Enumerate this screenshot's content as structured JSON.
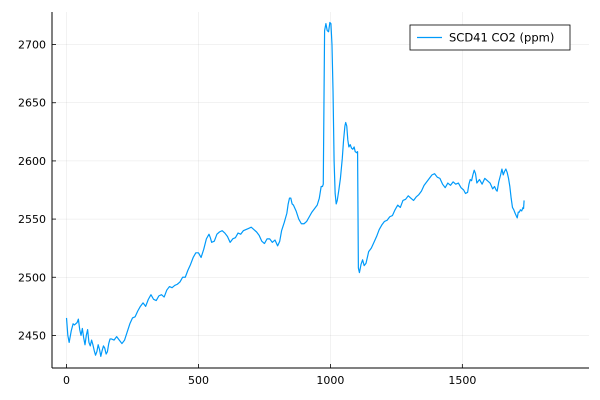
{
  "chart_data": {
    "type": "line",
    "xlim": [
      -55,
      1980
    ],
    "ylim": [
      2422,
      2728
    ],
    "xticks": [
      0,
      500,
      1000,
      1500
    ],
    "yticks": [
      2450,
      2500,
      2550,
      2600,
      2650,
      2700
    ],
    "grid": true,
    "legend_position": "top-right",
    "series": [
      {
        "name": "SCD41 CO2 (ppm)",
        "color": "#009AFA",
        "points": [
          [
            0,
            2465
          ],
          [
            5,
            2450
          ],
          [
            10,
            2444
          ],
          [
            18,
            2454
          ],
          [
            25,
            2460
          ],
          [
            30,
            2459
          ],
          [
            40,
            2461
          ],
          [
            45,
            2464
          ],
          [
            50,
            2455
          ],
          [
            55,
            2450
          ],
          [
            60,
            2456
          ],
          [
            65,
            2448
          ],
          [
            70,
            2442
          ],
          [
            75,
            2450
          ],
          [
            80,
            2455
          ],
          [
            85,
            2444
          ],
          [
            90,
            2441
          ],
          [
            95,
            2446
          ],
          [
            100,
            2442
          ],
          [
            105,
            2437
          ],
          [
            110,
            2433
          ],
          [
            115,
            2436
          ],
          [
            120,
            2442
          ],
          [
            125,
            2438
          ],
          [
            130,
            2432
          ],
          [
            135,
            2437
          ],
          [
            140,
            2441
          ],
          [
            145,
            2439
          ],
          [
            150,
            2434
          ],
          [
            155,
            2436
          ],
          [
            160,
            2443
          ],
          [
            165,
            2447
          ],
          [
            170,
            2447
          ],
          [
            180,
            2446
          ],
          [
            190,
            2449
          ],
          [
            200,
            2446
          ],
          [
            210,
            2443
          ],
          [
            220,
            2446
          ],
          [
            230,
            2453
          ],
          [
            240,
            2460
          ],
          [
            250,
            2465
          ],
          [
            260,
            2466
          ],
          [
            270,
            2471
          ],
          [
            280,
            2475
          ],
          [
            290,
            2478
          ],
          [
            300,
            2475
          ],
          [
            310,
            2481
          ],
          [
            320,
            2485
          ],
          [
            330,
            2481
          ],
          [
            340,
            2480
          ],
          [
            350,
            2484
          ],
          [
            360,
            2485
          ],
          [
            370,
            2483
          ],
          [
            380,
            2489
          ],
          [
            390,
            2492
          ],
          [
            400,
            2491
          ],
          [
            410,
            2493
          ],
          [
            420,
            2494
          ],
          [
            430,
            2496
          ],
          [
            440,
            2500
          ],
          [
            450,
            2500
          ],
          [
            460,
            2506
          ],
          [
            470,
            2511
          ],
          [
            480,
            2517
          ],
          [
            490,
            2521
          ],
          [
            500,
            2521
          ],
          [
            505,
            2519
          ],
          [
            510,
            2517
          ],
          [
            520,
            2524
          ],
          [
            530,
            2533
          ],
          [
            540,
            2537
          ],
          [
            545,
            2534
          ],
          [
            550,
            2530
          ],
          [
            560,
            2531
          ],
          [
            570,
            2537
          ],
          [
            580,
            2539
          ],
          [
            590,
            2540
          ],
          [
            600,
            2538
          ],
          [
            610,
            2535
          ],
          [
            620,
            2530
          ],
          [
            630,
            2533
          ],
          [
            640,
            2534
          ],
          [
            650,
            2538
          ],
          [
            660,
            2537
          ],
          [
            670,
            2540
          ],
          [
            680,
            2541
          ],
          [
            690,
            2542
          ],
          [
            700,
            2543
          ],
          [
            710,
            2541
          ],
          [
            720,
            2539
          ],
          [
            730,
            2536
          ],
          [
            740,
            2531
          ],
          [
            750,
            2529
          ],
          [
            760,
            2533
          ],
          [
            770,
            2533
          ],
          [
            780,
            2530
          ],
          [
            790,
            2532
          ],
          [
            800,
            2527
          ],
          [
            808,
            2531
          ],
          [
            815,
            2540
          ],
          [
            825,
            2547
          ],
          [
            835,
            2555
          ],
          [
            840,
            2563
          ],
          [
            845,
            2568
          ],
          [
            850,
            2568
          ],
          [
            855,
            2563
          ],
          [
            860,
            2562
          ],
          [
            870,
            2557
          ],
          [
            880,
            2550
          ],
          [
            890,
            2546
          ],
          [
            900,
            2546
          ],
          [
            910,
            2548
          ],
          [
            920,
            2552
          ],
          [
            930,
            2556
          ],
          [
            940,
            2559
          ],
          [
            950,
            2562
          ],
          [
            958,
            2568
          ],
          [
            965,
            2578
          ],
          [
            970,
            2578
          ],
          [
            973,
            2580
          ],
          [
            976,
            2660
          ],
          [
            978,
            2712
          ],
          [
            983,
            2718
          ],
          [
            988,
            2712
          ],
          [
            993,
            2711
          ],
          [
            998,
            2719
          ],
          [
            1002,
            2718
          ],
          [
            1006,
            2700
          ],
          [
            1010,
            2660
          ],
          [
            1014,
            2600
          ],
          [
            1018,
            2572
          ],
          [
            1022,
            2563
          ],
          [
            1026,
            2566
          ],
          [
            1032,
            2575
          ],
          [
            1038,
            2585
          ],
          [
            1045,
            2602
          ],
          [
            1050,
            2618
          ],
          [
            1055,
            2630
          ],
          [
            1058,
            2633
          ],
          [
            1062,
            2630
          ],
          [
            1066,
            2618
          ],
          [
            1070,
            2612
          ],
          [
            1075,
            2614
          ],
          [
            1080,
            2611
          ],
          [
            1085,
            2610
          ],
          [
            1090,
            2612
          ],
          [
            1094,
            2608
          ],
          [
            1100,
            2607
          ],
          [
            1103,
            2608
          ],
          [
            1106,
            2508
          ],
          [
            1110,
            2504
          ],
          [
            1116,
            2511
          ],
          [
            1122,
            2515
          ],
          [
            1128,
            2510
          ],
          [
            1135,
            2512
          ],
          [
            1145,
            2522
          ],
          [
            1155,
            2525
          ],
          [
            1165,
            2530
          ],
          [
            1175,
            2535
          ],
          [
            1185,
            2541
          ],
          [
            1195,
            2545
          ],
          [
            1205,
            2548
          ],
          [
            1215,
            2549
          ],
          [
            1225,
            2552
          ],
          [
            1235,
            2553
          ],
          [
            1245,
            2558
          ],
          [
            1255,
            2562
          ],
          [
            1265,
            2560
          ],
          [
            1275,
            2566
          ],
          [
            1285,
            2567
          ],
          [
            1295,
            2570
          ],
          [
            1305,
            2568
          ],
          [
            1315,
            2566
          ],
          [
            1325,
            2569
          ],
          [
            1335,
            2571
          ],
          [
            1345,
            2574
          ],
          [
            1355,
            2579
          ],
          [
            1365,
            2582
          ],
          [
            1375,
            2585
          ],
          [
            1385,
            2588
          ],
          [
            1395,
            2589
          ],
          [
            1405,
            2586
          ],
          [
            1415,
            2585
          ],
          [
            1425,
            2580
          ],
          [
            1435,
            2577
          ],
          [
            1445,
            2581
          ],
          [
            1455,
            2579
          ],
          [
            1465,
            2582
          ],
          [
            1475,
            2580
          ],
          [
            1485,
            2581
          ],
          [
            1495,
            2577
          ],
          [
            1505,
            2575
          ],
          [
            1512,
            2572
          ],
          [
            1520,
            2573
          ],
          [
            1525,
            2580
          ],
          [
            1530,
            2584
          ],
          [
            1535,
            2583
          ],
          [
            1540,
            2588
          ],
          [
            1545,
            2592
          ],
          [
            1550,
            2589
          ],
          [
            1555,
            2581
          ],
          [
            1565,
            2584
          ],
          [
            1575,
            2580
          ],
          [
            1585,
            2585
          ],
          [
            1595,
            2583
          ],
          [
            1605,
            2581
          ],
          [
            1615,
            2576
          ],
          [
            1622,
            2578
          ],
          [
            1628,
            2575
          ],
          [
            1632,
            2574
          ],
          [
            1638,
            2582
          ],
          [
            1645,
            2588
          ],
          [
            1650,
            2593
          ],
          [
            1655,
            2588
          ],
          [
            1660,
            2591
          ],
          [
            1665,
            2593
          ],
          [
            1670,
            2590
          ],
          [
            1675,
            2585
          ],
          [
            1680,
            2578
          ],
          [
            1685,
            2568
          ],
          [
            1690,
            2560
          ],
          [
            1695,
            2558
          ],
          [
            1700,
            2555
          ],
          [
            1704,
            2553
          ],
          [
            1708,
            2551
          ],
          [
            1712,
            2556
          ],
          [
            1716,
            2556
          ],
          [
            1720,
            2558
          ],
          [
            1725,
            2557
          ],
          [
            1730,
            2560
          ],
          [
            1732,
            2559
          ],
          [
            1734,
            2566
          ]
        ]
      }
    ]
  }
}
